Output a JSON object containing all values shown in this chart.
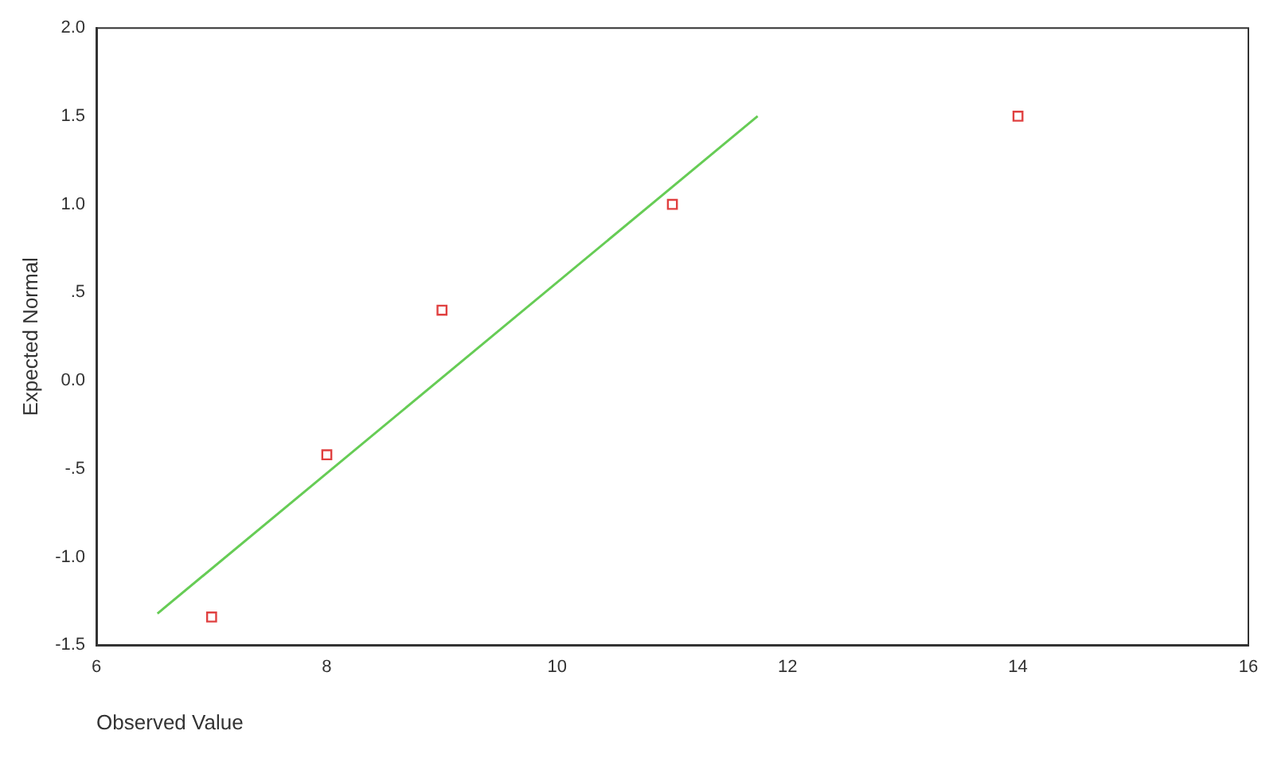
{
  "chart_data": {
    "type": "scatter",
    "xlabel": "Observed Value",
    "ylabel": "Expected Normal",
    "xlim": [
      6,
      16
    ],
    "xticks": [
      6,
      8,
      10,
      12,
      14,
      16
    ],
    "ylim": [
      -1.5,
      2.0
    ],
    "yticks": [
      {
        "value": -1.5,
        "label": "-1.5"
      },
      {
        "value": -1,
        "label": "-1.0"
      },
      {
        "value": -0.5,
        "label": "-.5"
      },
      {
        "value": 0,
        "label": "0.0"
      },
      {
        "value": 0.5,
        "label": ".5"
      },
      {
        "value": 1,
        "label": "1.0"
      },
      {
        "value": 1.5,
        "label": "1.5"
      },
      {
        "value": 2,
        "label": "2.0"
      }
    ],
    "grid": false,
    "legend": false,
    "series": [
      {
        "type": "scatter",
        "marker": "square",
        "color": "#e04040",
        "x": [
          7,
          8,
          9,
          11,
          14
        ],
        "values": [
          -1.34,
          -0.42,
          0.4,
          1.0,
          1.5
        ]
      },
      {
        "type": "line",
        "marker": "none",
        "color": "#66cc55",
        "x": [
          6.53,
          11.74
        ],
        "values": [
          -1.32,
          1.5
        ]
      }
    ]
  }
}
